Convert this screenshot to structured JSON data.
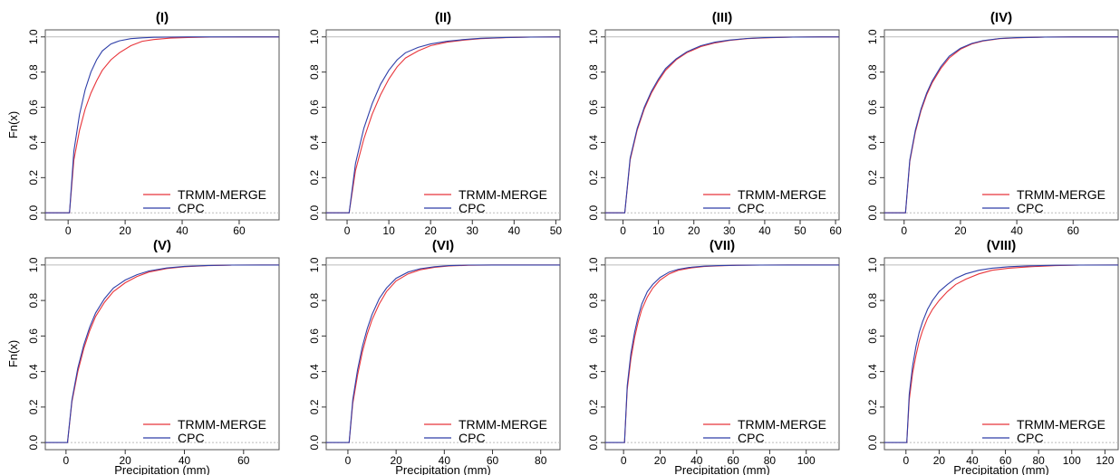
{
  "chart_data": {
    "type": "line",
    "layout": {
      "rows": 2,
      "cols": 4
    },
    "legend_placement": "bottom-right",
    "grid": false,
    "reference_line": 1.0,
    "shared_ylabel": "Fn(x)",
    "shared_xlabel": "Precipitation (mm)",
    "series_styles": [
      {
        "name": "TRMM-MERGE",
        "color": "#e8343a"
      },
      {
        "name": "CPC",
        "color": "#2f3fa8"
      }
    ],
    "panels": [
      {
        "title": "(I)",
        "xlim": [
          -8,
          74
        ],
        "ylim": [
          -0.04,
          1.04
        ],
        "xticks": [
          0,
          20,
          40,
          60
        ],
        "yticks": [
          0.0,
          0.2,
          0.4,
          0.6,
          0.8,
          1.0
        ],
        "ylabel": "Fn(x)",
        "xlabel": "",
        "series": [
          {
            "name": "TRMM-MERGE",
            "x": [
              0.5,
              2,
              4,
              6,
              8,
              10,
              12,
              15,
              18,
              22,
              26,
              30,
              36,
              42,
              50,
              62,
              72
            ],
            "y": [
              0,
              0.3,
              0.47,
              0.59,
              0.68,
              0.75,
              0.81,
              0.87,
              0.91,
              0.95,
              0.975,
              0.985,
              0.993,
              0.997,
              0.999,
              1.0,
              1.0
            ]
          },
          {
            "name": "CPC",
            "x": [
              0.5,
              2,
              4,
              6,
              8,
              10,
              12,
              15,
              18,
              22,
              26,
              30,
              36,
              42,
              50,
              62,
              72
            ],
            "y": [
              0,
              0.35,
              0.56,
              0.7,
              0.8,
              0.87,
              0.92,
              0.96,
              0.978,
              0.99,
              0.995,
              0.998,
              0.999,
              1.0,
              1.0,
              1.0,
              1.0
            ]
          }
        ]
      },
      {
        "title": "(II)",
        "xlim": [
          -5,
          51
        ],
        "ylim": [
          -0.04,
          1.04
        ],
        "xticks": [
          0,
          10,
          20,
          30,
          40,
          50
        ],
        "yticks": [
          0.0,
          0.2,
          0.4,
          0.6,
          0.8,
          1.0
        ],
        "ylabel": "",
        "xlabel": "",
        "series": [
          {
            "name": "TRMM-MERGE",
            "x": [
              0.5,
              2,
              4,
              6,
              8,
              10,
              12,
              14,
              17,
              20,
              24,
              28,
              32,
              38,
              44,
              51
            ],
            "y": [
              0,
              0.24,
              0.42,
              0.56,
              0.67,
              0.76,
              0.83,
              0.88,
              0.92,
              0.95,
              0.97,
              0.982,
              0.99,
              0.996,
              0.999,
              1.0
            ]
          },
          {
            "name": "CPC",
            "x": [
              0.5,
              2,
              4,
              6,
              8,
              10,
              12,
              14,
              17,
              20,
              24,
              28,
              32,
              38,
              44,
              51
            ],
            "y": [
              0,
              0.28,
              0.48,
              0.62,
              0.73,
              0.81,
              0.87,
              0.91,
              0.94,
              0.96,
              0.975,
              0.985,
              0.992,
              0.997,
              0.999,
              1.0
            ]
          }
        ]
      },
      {
        "title": "(III)",
        "xlim": [
          -5,
          61
        ],
        "ylim": [
          -0.04,
          1.04
        ],
        "xticks": [
          0,
          10,
          20,
          30,
          40,
          50,
          60
        ],
        "yticks": [
          0.0,
          0.2,
          0.4,
          0.6,
          0.8,
          1.0
        ],
        "ylabel": "",
        "xlabel": "",
        "series": [
          {
            "name": "TRMM-MERGE",
            "x": [
              0.5,
              2,
              4,
              6,
              8,
              10,
              12,
              15,
              18,
              22,
              26,
              30,
              35,
              40,
              48,
              56
            ],
            "y": [
              0,
              0.3,
              0.47,
              0.59,
              0.68,
              0.75,
              0.81,
              0.87,
              0.91,
              0.945,
              0.966,
              0.98,
              0.99,
              0.995,
              0.999,
              1.0
            ]
          },
          {
            "name": "CPC",
            "x": [
              0.5,
              2,
              4,
              6,
              8,
              10,
              12,
              15,
              18,
              22,
              26,
              30,
              35,
              40,
              48,
              56
            ],
            "y": [
              0,
              0.31,
              0.48,
              0.6,
              0.69,
              0.76,
              0.82,
              0.875,
              0.915,
              0.95,
              0.97,
              0.982,
              0.991,
              0.996,
              0.999,
              1.0
            ]
          }
        ]
      },
      {
        "title": "(IV)",
        "xlim": [
          -7,
          76
        ],
        "ylim": [
          -0.04,
          1.04
        ],
        "xticks": [
          0,
          20,
          40,
          60
        ],
        "yticks": [
          0.0,
          0.2,
          0.4,
          0.6,
          0.8,
          1.0
        ],
        "ylabel": "",
        "xlabel": "",
        "series": [
          {
            "name": "TRMM-MERGE",
            "x": [
              0.5,
              2,
              4,
              6,
              8,
              10,
              13,
              16,
              20,
              24,
              28,
              34,
              40,
              50,
              60,
              76
            ],
            "y": [
              0,
              0.29,
              0.46,
              0.58,
              0.67,
              0.74,
              0.82,
              0.88,
              0.93,
              0.96,
              0.977,
              0.99,
              0.995,
              0.999,
              1.0,
              1.0
            ]
          },
          {
            "name": "CPC",
            "x": [
              0.5,
              2,
              4,
              6,
              8,
              10,
              13,
              16,
              20,
              24,
              28,
              34,
              40,
              50,
              60,
              76
            ],
            "y": [
              0,
              0.3,
              0.47,
              0.59,
              0.68,
              0.75,
              0.83,
              0.89,
              0.935,
              0.963,
              0.979,
              0.991,
              0.996,
              0.999,
              1.0,
              1.0
            ]
          }
        ]
      },
      {
        "title": "(V)",
        "xlim": [
          -7,
          72
        ],
        "ylim": [
          -0.04,
          1.04
        ],
        "xticks": [
          0,
          20,
          40,
          60
        ],
        "yticks": [
          0.0,
          0.2,
          0.4,
          0.6,
          0.8,
          1.0
        ],
        "ylabel": "Fn(x)",
        "xlabel": "Precipitation (mm)",
        "series": [
          {
            "name": "TRMM-MERGE",
            "x": [
              0.5,
              2,
              4,
              6,
              8,
              10,
              13,
              16,
              20,
              24,
              28,
              34,
              40,
              48,
              56,
              66
            ],
            "y": [
              0,
              0.23,
              0.4,
              0.53,
              0.63,
              0.71,
              0.79,
              0.85,
              0.9,
              0.935,
              0.96,
              0.98,
              0.99,
              0.996,
              0.999,
              1.0
            ]
          },
          {
            "name": "CPC",
            "x": [
              0.5,
              2,
              4,
              6,
              8,
              10,
              13,
              16,
              20,
              24,
              28,
              34,
              40,
              48,
              56,
              66
            ],
            "y": [
              0,
              0.24,
              0.42,
              0.55,
              0.65,
              0.73,
              0.81,
              0.87,
              0.915,
              0.945,
              0.966,
              0.983,
              0.992,
              0.997,
              0.999,
              1.0
            ]
          }
        ]
      },
      {
        "title": "(VI)",
        "xlim": [
          -9,
          88
        ],
        "ylim": [
          -0.04,
          1.04
        ],
        "xticks": [
          0,
          20,
          40,
          60,
          80
        ],
        "yticks": [
          0.0,
          0.2,
          0.4,
          0.6,
          0.8,
          1.0
        ],
        "ylabel": "",
        "xlabel": "Precipitation (mm)",
        "series": [
          {
            "name": "TRMM-MERGE",
            "x": [
              0.5,
              2,
              4,
              6,
              8,
              10,
              13,
              16,
              20,
              25,
              30,
              36,
              42,
              50,
              60,
              72,
              88
            ],
            "y": [
              0,
              0.22,
              0.38,
              0.51,
              0.61,
              0.69,
              0.78,
              0.85,
              0.91,
              0.95,
              0.973,
              0.987,
              0.994,
              0.998,
              1.0,
              1.0,
              1.0
            ]
          },
          {
            "name": "CPC",
            "x": [
              0.5,
              2,
              4,
              6,
              8,
              10,
              13,
              16,
              20,
              25,
              30,
              36,
              42,
              50,
              60,
              72,
              88
            ],
            "y": [
              0,
              0.24,
              0.41,
              0.54,
              0.64,
              0.72,
              0.81,
              0.87,
              0.925,
              0.96,
              0.979,
              0.99,
              0.996,
              0.999,
              1.0,
              1.0,
              1.0
            ]
          }
        ]
      },
      {
        "title": "(VII)",
        "xlim": [
          -10,
          118
        ],
        "ylim": [
          -0.04,
          1.04
        ],
        "xticks": [
          0,
          20,
          40,
          60,
          80,
          100
        ],
        "yticks": [
          0.0,
          0.2,
          0.4,
          0.6,
          0.8,
          1.0
        ],
        "ylabel": "",
        "xlabel": "Precipitation (mm)",
        "series": [
          {
            "name": "TRMM-MERGE",
            "x": [
              0.5,
              2,
              4,
              6,
              8,
              10,
              13,
              16,
              20,
              25,
              30,
              36,
              44,
              52,
              62,
              75,
              90,
              110
            ],
            "y": [
              0,
              0.3,
              0.47,
              0.59,
              0.68,
              0.75,
              0.82,
              0.87,
              0.915,
              0.95,
              0.97,
              0.982,
              0.991,
              0.995,
              0.998,
              0.999,
              1.0,
              1.0
            ]
          },
          {
            "name": "CPC",
            "x": [
              0.5,
              2,
              4,
              6,
              8,
              10,
              13,
              16,
              20,
              25,
              30,
              36,
              44,
              52,
              62,
              75,
              90,
              110
            ],
            "y": [
              0,
              0.32,
              0.5,
              0.62,
              0.71,
              0.78,
              0.85,
              0.89,
              0.93,
              0.96,
              0.976,
              0.986,
              0.993,
              0.996,
              0.998,
              0.999,
              1.0,
              1.0
            ]
          }
        ]
      },
      {
        "title": "(VIII)",
        "xlim": [
          -13,
          128
        ],
        "ylim": [
          -0.04,
          1.04
        ],
        "xticks": [
          0,
          20,
          40,
          60,
          80,
          100,
          120
        ],
        "yticks": [
          0.0,
          0.2,
          0.4,
          0.6,
          0.8,
          1.0
        ],
        "ylabel": "",
        "xlabel": "Precipitation (mm)",
        "series": [
          {
            "name": "TRMM-MERGE",
            "x": [
              0.5,
              2,
              4,
              6,
              8,
              10,
              13,
              16,
              20,
              25,
              30,
              36,
              44,
              52,
              62,
              75,
              90,
              105,
              128
            ],
            "y": [
              0,
              0.24,
              0.39,
              0.49,
              0.57,
              0.63,
              0.7,
              0.75,
              0.8,
              0.85,
              0.89,
              0.92,
              0.95,
              0.97,
              0.982,
              0.99,
              0.996,
              0.999,
              1.0
            ]
          },
          {
            "name": "CPC",
            "x": [
              0.5,
              2,
              4,
              6,
              8,
              10,
              13,
              16,
              20,
              25,
              30,
              36,
              44,
              52,
              62,
              75,
              90,
              105,
              128
            ],
            "y": [
              0,
              0.27,
              0.43,
              0.54,
              0.62,
              0.68,
              0.75,
              0.8,
              0.85,
              0.89,
              0.925,
              0.95,
              0.97,
              0.982,
              0.99,
              0.995,
              0.998,
              0.999,
              1.0
            ]
          }
        ]
      }
    ]
  }
}
